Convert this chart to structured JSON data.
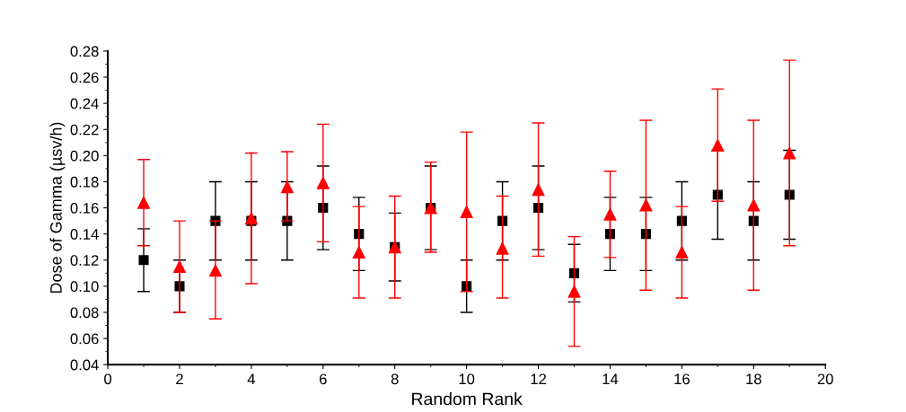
{
  "chart_data": {
    "type": "scatter",
    "xlabel": "Random Rank",
    "ylabel": "Dose of Gamma (µsv/h)",
    "x": [
      1,
      2,
      3,
      4,
      5,
      6,
      7,
      8,
      9,
      10,
      11,
      12,
      13,
      14,
      15,
      16,
      17,
      18,
      19
    ],
    "series": [
      {
        "color": "#000000",
        "marker": "square",
        "values": [
          0.12,
          0.1,
          0.15,
          0.15,
          0.15,
          0.16,
          0.14,
          0.13,
          0.16,
          0.1,
          0.15,
          0.16,
          0.11,
          0.14,
          0.14,
          0.15,
          0.17,
          0.15,
          0.17
        ],
        "errors": [
          0.024,
          0.02,
          0.03,
          0.03,
          0.03,
          0.032,
          0.028,
          0.026,
          0.032,
          0.02,
          0.03,
          0.032,
          0.022,
          0.028,
          0.028,
          0.03,
          0.034,
          0.03,
          0.034
        ]
      },
      {
        "color": "#ff0000",
        "marker": "triangle",
        "values": [
          0.164,
          0.115,
          0.112,
          0.152,
          0.176,
          0.179,
          0.126,
          0.13,
          0.16,
          0.157,
          0.129,
          0.174,
          0.096,
          0.155,
          0.162,
          0.126,
          0.208,
          0.162,
          0.202
        ],
        "errors": [
          [
            0.131,
            0.197
          ],
          [
            0.08,
            0.15
          ],
          [
            0.075,
            0.15
          ],
          [
            0.102,
            0.202
          ],
          [
            0.15,
            0.203
          ],
          [
            0.134,
            0.224
          ],
          [
            0.091,
            0.161
          ],
          [
            0.091,
            0.169
          ],
          [
            0.126,
            0.195
          ],
          [
            0.096,
            0.218
          ],
          [
            0.091,
            0.169
          ],
          [
            0.123,
            0.225
          ],
          [
            0.054,
            0.138
          ],
          [
            0.122,
            0.188
          ],
          [
            0.097,
            0.227
          ],
          [
            0.091,
            0.161
          ],
          [
            0.165,
            0.251
          ],
          [
            0.097,
            0.227
          ],
          [
            0.131,
            0.273
          ]
        ]
      }
    ],
    "xlim": [
      0,
      20
    ],
    "xticks": [
      0,
      2,
      4,
      6,
      8,
      10,
      12,
      14,
      16,
      18,
      20
    ],
    "ylim": [
      0.04,
      0.28
    ],
    "yticks": [
      0.04,
      0.06,
      0.08,
      {
        "value": 0.1,
        "label": "0.10"
      },
      0.12,
      0.14,
      0.16,
      0.18,
      {
        "value": 0.2,
        "label": "0.20"
      },
      0.22,
      0.24,
      0.26,
      0.28
    ],
    "grid": false,
    "legend": false
  }
}
